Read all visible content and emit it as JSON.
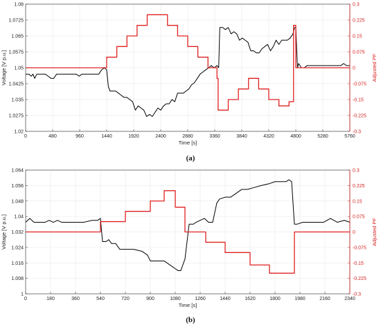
{
  "colors": {
    "voltage": "#000000",
    "pf": "#e02020",
    "right_axis": "#d62020",
    "grid": "#e6e6e6"
  },
  "chart_data": [
    {
      "type": "line",
      "caption": "(a)",
      "xlabel": "Time [s]",
      "ylabel": "Voltage [V p.u.]",
      "y2label": "Adjusted PF",
      "xlim": [
        0,
        5760
      ],
      "ylim": [
        1.02,
        1.08
      ],
      "y2lim": [
        -0.3,
        0.3
      ],
      "xticks": [
        "0",
        "480",
        "960",
        "1440",
        "1920",
        "2400",
        "2880",
        "3360",
        "3840",
        "4320",
        "4800",
        "5280",
        "5760"
      ],
      "yticks": [
        "1.02",
        "1.0275",
        "1.035",
        "1.0425",
        "1.05",
        "1.0575",
        "1.065",
        "1.0725",
        "1.08"
      ],
      "y2ticks": [
        "-0.3",
        "-0.225",
        "-0.15",
        "-0.075",
        "0",
        "0.075",
        "0.15",
        "0.225",
        "0.3"
      ],
      "grid": true,
      "series": [
        {
          "axis": "left",
          "x": [
            0,
            60,
            100,
            130,
            160,
            200,
            250,
            300,
            350,
            400,
            450,
            500,
            550,
            600,
            650,
            700,
            750,
            800,
            850,
            900,
            950,
            1000,
            1050,
            1100,
            1150,
            1200,
            1250,
            1300,
            1350,
            1400,
            1440,
            1470,
            1500,
            1550,
            1600,
            1650,
            1700,
            1750,
            1800,
            1850,
            1900,
            1950,
            2000,
            2050,
            2100,
            2150,
            2200,
            2250,
            2300,
            2350,
            2400,
            2450,
            2500,
            2550,
            2600,
            2650,
            2700,
            2750,
            2800,
            2850,
            2900,
            2950,
            3000,
            3050,
            3100,
            3150,
            3200,
            3250,
            3300,
            3350,
            3400,
            3430,
            3450,
            3500,
            3550,
            3600,
            3650,
            3700,
            3750,
            3800,
            3850,
            3900,
            3950,
            4000,
            4050,
            4100,
            4150,
            4200,
            4250,
            4300,
            4350,
            4400,
            4450,
            4500,
            4550,
            4600,
            4650,
            4700,
            4750,
            4780,
            4800,
            4830,
            4850,
            4900,
            4950,
            5000,
            5100,
            5200,
            5300,
            5400,
            5500,
            5600,
            5650,
            5700,
            5760
          ],
          "values": [
            1.047,
            1.047,
            1.046,
            1.047,
            1.045,
            1.047,
            1.047,
            1.047,
            1.047,
            1.046,
            1.045,
            1.045,
            1.047,
            1.047,
            1.047,
            1.047,
            1.047,
            1.047,
            1.047,
            1.047,
            1.046,
            1.047,
            1.047,
            1.047,
            1.047,
            1.047,
            1.047,
            1.047,
            1.049,
            1.05,
            1.049,
            1.041,
            1.039,
            1.039,
            1.039,
            1.038,
            1.037,
            1.036,
            1.036,
            1.035,
            1.034,
            1.03,
            1.032,
            1.031,
            1.03,
            1.027,
            1.028,
            1.027,
            1.029,
            1.031,
            1.03,
            1.032,
            1.033,
            1.033,
            1.035,
            1.034,
            1.038,
            1.038,
            1.038,
            1.039,
            1.04,
            1.042,
            1.043,
            1.045,
            1.047,
            1.048,
            1.049,
            1.05,
            1.051,
            1.05,
            1.051,
            1.05,
            1.069,
            1.069,
            1.068,
            1.069,
            1.066,
            1.067,
            1.066,
            1.063,
            1.064,
            1.063,
            1.062,
            1.058,
            1.058,
            1.057,
            1.057,
            1.059,
            1.06,
            1.061,
            1.058,
            1.06,
            1.063,
            1.061,
            1.063,
            1.063,
            1.063,
            1.064,
            1.066,
            1.069,
            1.069,
            1.05,
            1.052,
            1.05,
            1.05,
            1.051,
            1.051,
            1.051,
            1.051,
            1.051,
            1.051,
            1.051,
            1.052,
            1.051,
            1.051
          ]
        },
        {
          "axis": "right",
          "x": [
            0,
            1400,
            1440,
            1440,
            1620,
            1620,
            1800,
            1800,
            1980,
            1980,
            2160,
            2160,
            2520,
            2520,
            2700,
            2700,
            2880,
            2880,
            3060,
            3060,
            3240,
            3240,
            3400,
            3400,
            3420,
            3420,
            3600,
            3600,
            3780,
            3780,
            3960,
            3960,
            4140,
            4140,
            4320,
            4320,
            4500,
            4500,
            4680,
            4680,
            4760,
            4760,
            4800,
            4800,
            5760
          ],
          "values": [
            0,
            0,
            0,
            0.05,
            0.05,
            0.1,
            0.1,
            0.15,
            0.15,
            0.2,
            0.2,
            0.25,
            0.25,
            0.2,
            0.2,
            0.15,
            0.15,
            0.1,
            0.1,
            0.05,
            0.05,
            0,
            0,
            -0.05,
            -0.05,
            -0.2,
            -0.2,
            -0.15,
            -0.15,
            -0.1,
            -0.1,
            -0.05,
            -0.05,
            -0.1,
            -0.1,
            -0.15,
            -0.15,
            -0.18,
            -0.18,
            -0.16,
            -0.16,
            0.2,
            0.2,
            0,
            0
          ]
        }
      ]
    },
    {
      "type": "line",
      "caption": "(b)",
      "xlabel": "Time [s]",
      "ylabel": "Voltage [V p.u.]",
      "y2label": "Adjusted PF",
      "xlim": [
        0,
        2340
      ],
      "ylim": [
        1.0,
        1.064
      ],
      "y2lim": [
        -0.3,
        0.3
      ],
      "xticks": [
        "0",
        "180",
        "360",
        "540",
        "720",
        "900",
        "1080",
        "1260",
        "1440",
        "1620",
        "1800",
        "1980",
        "2160",
        "2340"
      ],
      "yticks": [
        "1",
        "1.008",
        "1.016",
        "1.024",
        "1.032",
        "1.04",
        "1.048",
        "1.056",
        "1.064"
      ],
      "y2ticks": [
        "-0.3",
        "-0.225",
        "-0.15",
        "-0.075",
        "0",
        "0.075",
        "0.15",
        "0.225",
        "0.3"
      ],
      "grid": true,
      "series": [
        {
          "axis": "left",
          "x": [
            0,
            30,
            60,
            100,
            140,
            170,
            200,
            230,
            260,
            300,
            360,
            420,
            480,
            520,
            540,
            555,
            580,
            600,
            620,
            650,
            680,
            720,
            780,
            840,
            880,
            900,
            960,
            1000,
            1040,
            1080,
            1100,
            1120,
            1150,
            1180,
            1210,
            1230,
            1260,
            1290,
            1320,
            1350,
            1380,
            1400,
            1440,
            1480,
            1520,
            1560,
            1600,
            1650,
            1700,
            1760,
            1800,
            1840,
            1860,
            1880,
            1900,
            1920,
            1940,
            1960,
            2000,
            2050,
            2100,
            2150,
            2200,
            2250,
            2300,
            2340
          ],
          "values": [
            1.037,
            1.039,
            1.037,
            1.037,
            1.037,
            1.038,
            1.037,
            1.038,
            1.037,
            1.037,
            1.037,
            1.037,
            1.038,
            1.038,
            1.039,
            1.027,
            1.027,
            1.028,
            1.026,
            1.026,
            1.023,
            1.023,
            1.023,
            1.022,
            1.02,
            1.017,
            1.017,
            1.017,
            1.015,
            1.013,
            1.012,
            1.012,
            1.018,
            1.036,
            1.036,
            1.037,
            1.038,
            1.039,
            1.037,
            1.037,
            1.047,
            1.049,
            1.05,
            1.05,
            1.052,
            1.054,
            1.054,
            1.055,
            1.056,
            1.057,
            1.058,
            1.058,
            1.058,
            1.058,
            1.059,
            1.058,
            1.036,
            1.036,
            1.037,
            1.037,
            1.037,
            1.037,
            1.039,
            1.037,
            1.038,
            1.037
          ]
        },
        {
          "axis": "right",
          "x": [
            0,
            540,
            540,
            720,
            720,
            900,
            900,
            1000,
            1000,
            1080,
            1080,
            1150,
            1150,
            1300,
            1300,
            1440,
            1440,
            1620,
            1620,
            1760,
            1760,
            1940,
            1940,
            2340
          ],
          "values": [
            0,
            0,
            0.05,
            0.05,
            0.1,
            0.1,
            0.15,
            0.15,
            0.2,
            0.2,
            0.12,
            0.12,
            0,
            0,
            -0.05,
            -0.05,
            -0.1,
            -0.1,
            -0.16,
            -0.16,
            -0.2,
            -0.2,
            0,
            0
          ]
        }
      ]
    }
  ]
}
